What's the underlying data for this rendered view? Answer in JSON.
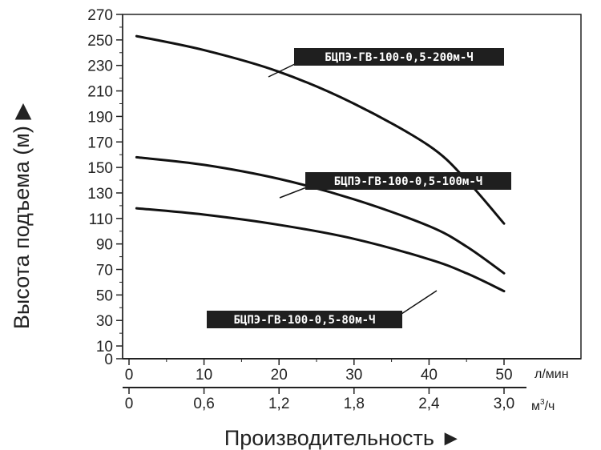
{
  "chart_data": {
    "type": "line",
    "title": "",
    "ylabel": "Высота подъема (м) ▶",
    "xlabel": "Производительность ►",
    "ylim": [
      0,
      270
    ],
    "yticks": [
      0,
      10,
      30,
      50,
      70,
      90,
      110,
      130,
      150,
      170,
      190,
      210,
      230,
      250,
      270
    ],
    "xlim": [
      0,
      50
    ],
    "x_primary": {
      "ticks": [
        0,
        10,
        20,
        30,
        40,
        50
      ],
      "unit": "л/мин"
    },
    "x_secondary": {
      "ticks": [
        "0",
        "0,6",
        "1,2",
        "1,8",
        "2,4",
        "3,0"
      ],
      "unit_base": "м",
      "unit_sup": "3",
      "unit_tail": "/ч"
    },
    "grid": false,
    "series": [
      {
        "name": "БЦПЭ-ГВ-100-0,5-200м-Ч",
        "x": [
          1,
          10,
          20,
          30,
          40,
          45,
          50
        ],
        "y": [
          253,
          242,
          225,
          200,
          167,
          140,
          106
        ]
      },
      {
        "name": "БЦПЭ-ГВ-100-0,5-100м-Ч",
        "x": [
          1,
          10,
          20,
          30,
          40,
          45,
          50
        ],
        "y": [
          158,
          152,
          141,
          125,
          104,
          88,
          67
        ]
      },
      {
        "name": "БЦПЭ-ГВ-100-0,5-80м-Ч",
        "x": [
          1,
          10,
          20,
          30,
          40,
          45,
          50
        ],
        "y": [
          118,
          113,
          105,
          94,
          78,
          67,
          53
        ]
      }
    ]
  }
}
